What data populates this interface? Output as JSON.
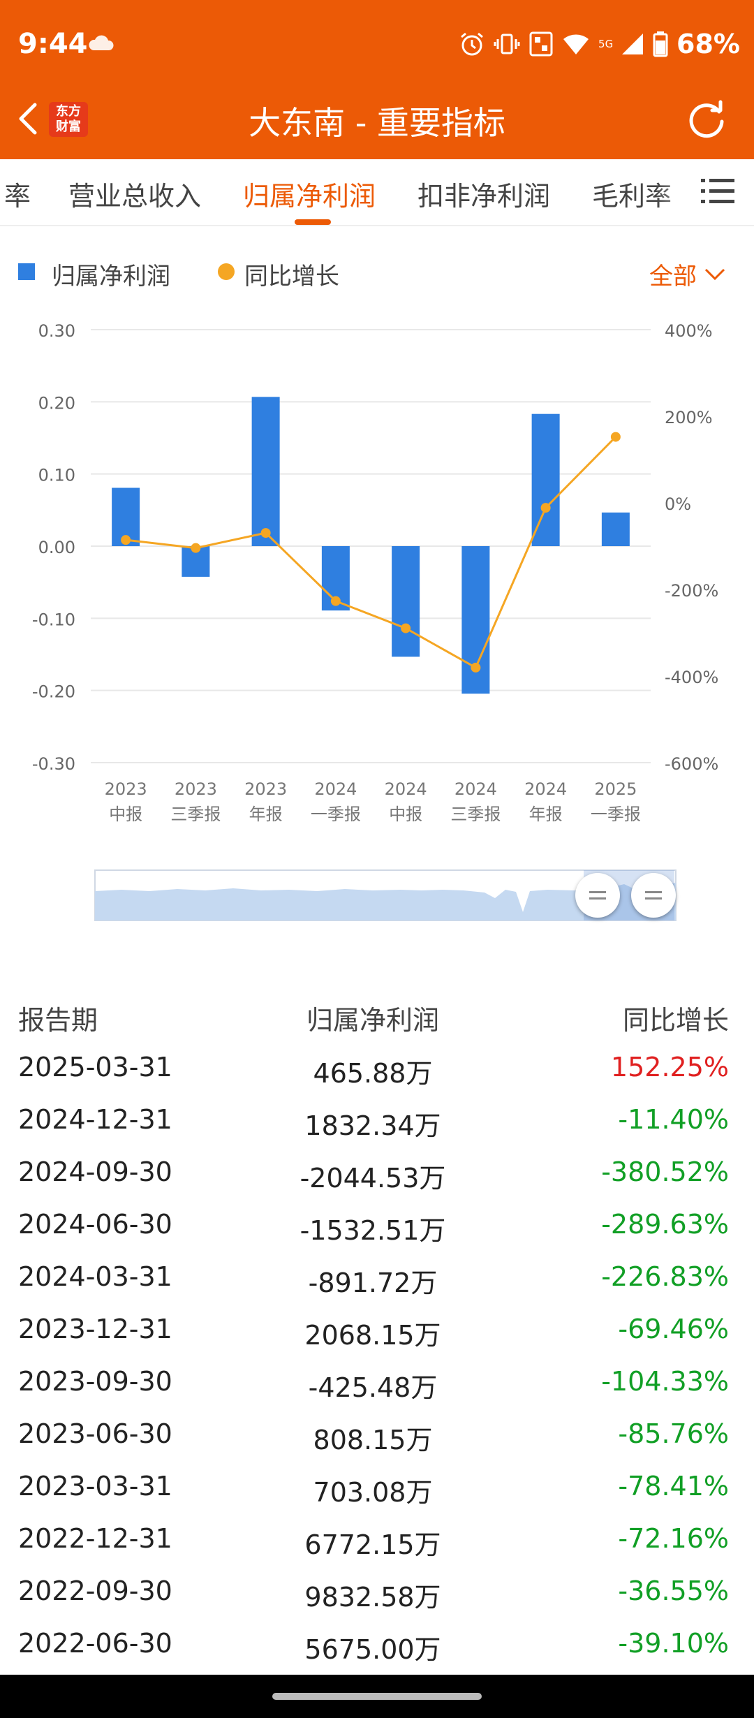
{
  "status": {
    "time": "9:44",
    "battery": "68%",
    "network_label": "5G"
  },
  "header": {
    "title": "大东南 - 重要指标",
    "logo_line1": "东方",
    "logo_line2": "财富"
  },
  "tabs": [
    {
      "label": "率"
    },
    {
      "label": "营业总收入"
    },
    {
      "label": "归属净利润"
    },
    {
      "label": "扣非净利润"
    },
    {
      "label": "毛利率"
    }
  ],
  "legend": {
    "bar_label": "归属净利润",
    "line_label": "同比增长",
    "filter_label": "全部"
  },
  "colors": {
    "accent": "#ec5a06",
    "bar": "#2f7fe0",
    "line": "#f5a623",
    "up": "#e02020",
    "down": "#119f25"
  },
  "chart_data": {
    "type": "bar",
    "categories": [
      "2023\n中报",
      "2023\n三季报",
      "2023\n年报",
      "2024\n一季报",
      "2024\n中报",
      "2024\n三季报",
      "2024\n年报",
      "2025\n一季报"
    ],
    "category_lines": [
      [
        "2023",
        "中报"
      ],
      [
        "2023",
        "三季报"
      ],
      [
        "2023",
        "年报"
      ],
      [
        "2024",
        "一季报"
      ],
      [
        "2024",
        "中报"
      ],
      [
        "2024",
        "三季报"
      ],
      [
        "2024",
        "年报"
      ],
      [
        "2025",
        "一季报"
      ]
    ],
    "series": [
      {
        "name": "归属净利润",
        "type": "bar",
        "axis": "left",
        "values": [
          0.0808,
          -0.0425,
          0.2068,
          -0.0892,
          -0.1533,
          -0.2045,
          0.1832,
          0.0466
        ]
      },
      {
        "name": "同比增长",
        "type": "line",
        "axis": "right",
        "values": [
          -85.76,
          -104.33,
          -69.46,
          -226.83,
          -289.63,
          -380.52,
          -11.4,
          152.25
        ]
      }
    ],
    "left_axis": {
      "min": -0.3,
      "max": 0.3,
      "ticks": [
        "0.30",
        "0.20",
        "0.10",
        "0.00",
        "-0.10",
        "-0.20",
        "-0.30"
      ]
    },
    "right_axis": {
      "min": -600,
      "max": 400,
      "ticks": [
        "400%",
        "200%",
        "0%",
        "-200%",
        "-400%",
        "-600%"
      ]
    }
  },
  "table": {
    "headers": [
      "报告期",
      "归属净利润",
      "同比增长"
    ],
    "rows": [
      {
        "date": "2025-03-31",
        "profit": "465.88万",
        "growth": "152.25%",
        "dir": "up"
      },
      {
        "date": "2024-12-31",
        "profit": "1832.34万",
        "growth": "-11.40%",
        "dir": "down"
      },
      {
        "date": "2024-09-30",
        "profit": "-2044.53万",
        "growth": "-380.52%",
        "dir": "down"
      },
      {
        "date": "2024-06-30",
        "profit": "-1532.51万",
        "growth": "-289.63%",
        "dir": "down"
      },
      {
        "date": "2024-03-31",
        "profit": "-891.72万",
        "growth": "-226.83%",
        "dir": "down"
      },
      {
        "date": "2023-12-31",
        "profit": "2068.15万",
        "growth": "-69.46%",
        "dir": "down"
      },
      {
        "date": "2023-09-30",
        "profit": "-425.48万",
        "growth": "-104.33%",
        "dir": "down"
      },
      {
        "date": "2023-06-30",
        "profit": "808.15万",
        "growth": "-85.76%",
        "dir": "down"
      },
      {
        "date": "2023-03-31",
        "profit": "703.08万",
        "growth": "-78.41%",
        "dir": "down"
      },
      {
        "date": "2022-12-31",
        "profit": "6772.15万",
        "growth": "-72.16%",
        "dir": "down"
      },
      {
        "date": "2022-09-30",
        "profit": "9832.58万",
        "growth": "-36.55%",
        "dir": "down"
      },
      {
        "date": "2022-06-30",
        "profit": "5675.00万",
        "growth": "-39.10%",
        "dir": "down"
      }
    ]
  }
}
